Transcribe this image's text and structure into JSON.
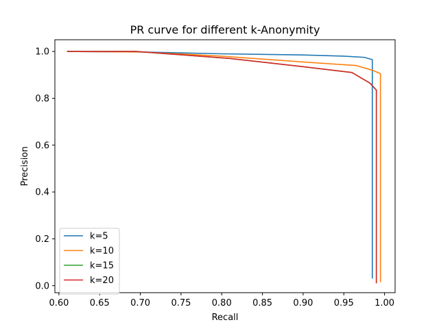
{
  "chart_data": {
    "type": "line",
    "title": "PR curve for different k-Anonymity",
    "xlabel": "Recall",
    "ylabel": "Precision",
    "xlim": [
      0.595,
      1.013
    ],
    "ylim": [
      -0.03,
      1.05
    ],
    "xticks": [
      0.6,
      0.65,
      0.7,
      0.75,
      0.8,
      0.85,
      0.9,
      0.95,
      1.0
    ],
    "xtick_labels": [
      "0.60",
      "0.65",
      "0.70",
      "0.75",
      "0.80",
      "0.85",
      "0.90",
      "0.95",
      "1.00"
    ],
    "yticks": [
      0.0,
      0.2,
      0.4,
      0.6,
      0.8,
      1.0
    ],
    "ytick_labels": [
      "0.0",
      "0.2",
      "0.4",
      "0.6",
      "0.8",
      "1.0"
    ],
    "grid": false,
    "legend_position": "lower-left",
    "series": [
      {
        "name": "k=5",
        "color": "#1f77b4",
        "x": [
          0.61,
          0.7,
          0.8,
          0.9,
          0.95,
          0.975,
          0.985,
          0.985,
          0.985
        ],
        "y": [
          1.0,
          0.998,
          0.99,
          0.985,
          0.98,
          0.975,
          0.965,
          0.5,
          0.03
        ]
      },
      {
        "name": "k=10",
        "color": "#ff7f0e",
        "x": [
          0.61,
          0.7,
          0.8,
          0.9,
          0.965,
          0.985,
          0.995,
          0.995,
          0.995
        ],
        "y": [
          1.0,
          0.998,
          0.98,
          0.955,
          0.94,
          0.92,
          0.905,
          0.5,
          0.015
        ]
      },
      {
        "name": "k=15",
        "color": "#2ca02c",
        "x": [
          0.61,
          0.695,
          0.81,
          0.9,
          0.96,
          0.982,
          0.99,
          0.99
        ],
        "y": [
          1.0,
          1.0,
          0.97,
          0.935,
          0.91,
          0.865,
          0.835,
          0.01
        ]
      },
      {
        "name": "k=20",
        "color": "#d62728",
        "x": [
          0.61,
          0.695,
          0.81,
          0.9,
          0.96,
          0.982,
          0.99,
          0.99
        ],
        "y": [
          1.0,
          1.0,
          0.97,
          0.935,
          0.91,
          0.865,
          0.835,
          0.01
        ]
      }
    ]
  }
}
